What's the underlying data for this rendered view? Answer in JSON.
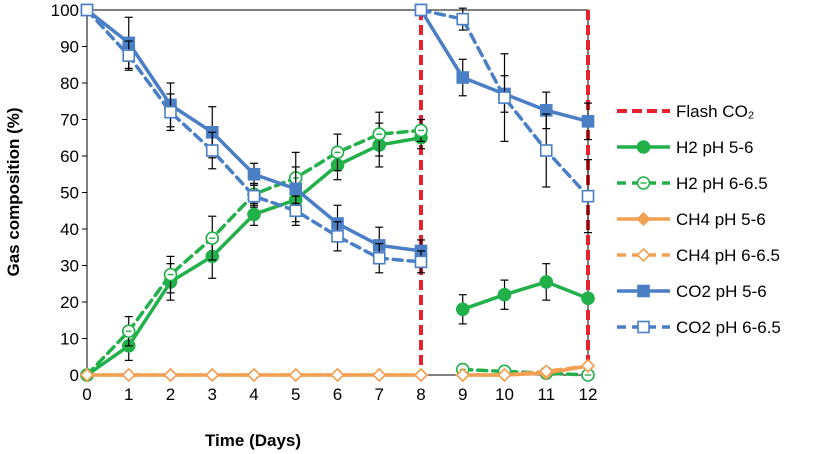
{
  "chart_data": {
    "type": "line",
    "title": "",
    "xlabel": "Time (Days)",
    "ylabel": "Gas composition (%)",
    "xlim": [
      0,
      12
    ],
    "ylim": [
      0,
      100
    ],
    "x_ticks": [
      0,
      1,
      2,
      3,
      4,
      5,
      6,
      7,
      8,
      9,
      10,
      11,
      12
    ],
    "y_ticks": [
      0,
      10,
      20,
      30,
      40,
      50,
      60,
      70,
      80,
      90,
      100
    ],
    "grid": false,
    "legend_position": "right",
    "flash_lines": {
      "name": "Flash CO₂",
      "x": [
        8,
        12
      ],
      "color": "#e8212c"
    },
    "series": [
      {
        "name": "H2 pH 5-6",
        "color": "#22b04b",
        "dashed": false,
        "marker": "circle",
        "filled": true,
        "segments": [
          {
            "x": [
              0,
              1,
              2,
              3,
              4,
              5,
              6,
              7,
              8
            ],
            "y": [
              0,
              8,
              25.5,
              32.5,
              44,
              48,
              57.5,
              63,
              65
            ],
            "err": [
              0,
              4,
              5,
              6,
              3,
              6,
              4,
              6,
              3
            ]
          },
          {
            "x": [
              9,
              10,
              11,
              12
            ],
            "y": [
              18,
              22,
              25.5,
              21
            ],
            "err": [
              4,
              4,
              5,
              0
            ]
          }
        ]
      },
      {
        "name": "H2 pH 6-6.5",
        "color": "#22b04b",
        "dashed": true,
        "marker": "circle",
        "filled": false,
        "segments": [
          {
            "x": [
              0,
              1,
              2,
              3,
              4,
              5,
              6,
              7,
              8
            ],
            "y": [
              0,
              12,
              27.5,
              37.5,
              49.5,
              54,
              61,
              66,
              67
            ],
            "err": [
              0,
              4,
              5,
              6,
              3,
              7,
              5,
              6,
              3
            ]
          },
          {
            "x": [
              9,
              10,
              11,
              12
            ],
            "y": [
              1.5,
              1,
              0.5,
              0
            ],
            "err": [
              0,
              0,
              0,
              0
            ]
          }
        ]
      },
      {
        "name": "CH4 pH 5-6",
        "color": "#f3a052",
        "dashed": false,
        "marker": "diamond",
        "filled": true,
        "segments": [
          {
            "x": [
              0,
              1,
              2,
              3,
              4,
              5,
              6,
              7,
              8
            ],
            "y": [
              0,
              0,
              0,
              0,
              0,
              0,
              0,
              0,
              0
            ],
            "err": [
              0,
              0,
              0,
              0,
              0,
              0,
              0,
              0,
              0
            ]
          },
          {
            "x": [
              9,
              10,
              11,
              12
            ],
            "y": [
              0,
              0,
              0.5,
              2.5
            ],
            "err": [
              0,
              0,
              0,
              0
            ]
          }
        ]
      },
      {
        "name": "CH4 pH 6-6.5",
        "color": "#f3a052",
        "dashed": true,
        "marker": "diamond",
        "filled": false,
        "segments": [
          {
            "x": [
              0,
              1,
              2,
              3,
              4,
              5,
              6,
              7,
              8
            ],
            "y": [
              0,
              0,
              0,
              0,
              0,
              0,
              0,
              0,
              0
            ],
            "err": [
              0,
              0,
              0,
              0,
              0,
              0,
              0,
              0,
              0
            ]
          },
          {
            "x": [
              9,
              10,
              11,
              12
            ],
            "y": [
              0,
              0,
              1,
              2.5
            ],
            "err": [
              0,
              0,
              0,
              0
            ]
          }
        ]
      },
      {
        "name": "CO2 pH 5-6",
        "color": "#4a7ec5",
        "dashed": false,
        "marker": "square",
        "filled": true,
        "segments": [
          {
            "x": [
              0,
              1,
              2,
              3,
              4,
              5,
              6,
              7,
              8
            ],
            "y": [
              100,
              91,
              74,
              66.5,
              55,
              51,
              41.5,
              35.5,
              34
            ],
            "err": [
              0,
              7,
              6,
              7,
              3,
              6,
              5,
              5,
              3
            ]
          },
          {
            "x": [
              8,
              9,
              10,
              11,
              12
            ],
            "y": [
              100,
              81.5,
              77,
              72.5,
              69.5
            ],
            "err": [
              0,
              5,
              5,
              5,
              5
            ]
          }
        ]
      },
      {
        "name": "CO2 pH 6-6.5",
        "color": "#4a7ec5",
        "dashed": true,
        "marker": "square",
        "filled": false,
        "segments": [
          {
            "x": [
              0,
              1,
              2,
              3,
              4,
              5,
              6,
              7,
              8
            ],
            "y": [
              100,
              87.5,
              72,
              61.5,
              49,
              45,
              38,
              32,
              31
            ],
            "err": [
              0,
              4,
              5,
              5,
              3,
              4,
              4,
              4,
              3
            ]
          },
          {
            "x": [
              8,
              9,
              10,
              11,
              12
            ],
            "y": [
              100,
              97.5,
              76,
              61.5,
              49
            ],
            "err": [
              0,
              3,
              12,
              10,
              10
            ]
          }
        ]
      }
    ]
  }
}
